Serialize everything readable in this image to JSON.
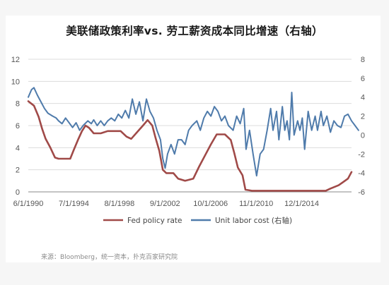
{
  "colors": {
    "fed": "#a04a48",
    "ulc": "#4f7bab",
    "grid": "#dcdcdc",
    "axis": "#888888"
  },
  "chart_data": {
    "type": "line",
    "title": "美联储政策利率vs. 劳工薪资成本同比增速（右轴）",
    "x_tick_labels": [
      "6/1/1990",
      "7/1/1994",
      "8/1/1998",
      "9/1/2002",
      "10/1/2006",
      "11/1/2010",
      "12/1/2014"
    ],
    "x_range": [
      1990.42,
      2018.0
    ],
    "y_left": {
      "ticks": [
        0,
        2,
        4,
        6,
        8,
        10,
        12
      ],
      "range": [
        0,
        12
      ]
    },
    "y_right": {
      "ticks": [
        -6,
        -4,
        -2,
        0,
        2,
        4,
        6,
        8
      ],
      "range": [
        -6,
        8
      ]
    },
    "grid": true,
    "legend_position": "bottom",
    "series": [
      {
        "name": "Fed policy rate",
        "axis": "left",
        "points": [
          [
            1990.42,
            8.2
          ],
          [
            1990.9,
            7.8
          ],
          [
            1991.3,
            6.8
          ],
          [
            1991.6,
            5.7
          ],
          [
            1991.9,
            4.8
          ],
          [
            1992.3,
            4.0
          ],
          [
            1992.7,
            3.1
          ],
          [
            1993.0,
            3.0
          ],
          [
            1993.5,
            3.0
          ],
          [
            1994.0,
            3.0
          ],
          [
            1994.3,
            3.8
          ],
          [
            1994.7,
            4.8
          ],
          [
            1995.0,
            5.5
          ],
          [
            1995.3,
            6.0
          ],
          [
            1995.6,
            5.8
          ],
          [
            1996.0,
            5.3
          ],
          [
            1996.6,
            5.3
          ],
          [
            1997.2,
            5.5
          ],
          [
            1997.8,
            5.5
          ],
          [
            1998.3,
            5.5
          ],
          [
            1998.8,
            5.0
          ],
          [
            1999.2,
            4.8
          ],
          [
            1999.7,
            5.4
          ],
          [
            2000.2,
            6.0
          ],
          [
            2000.6,
            6.5
          ],
          [
            2001.0,
            6.0
          ],
          [
            2001.3,
            4.8
          ],
          [
            2001.6,
            3.7
          ],
          [
            2001.9,
            2.0
          ],
          [
            2002.2,
            1.7
          ],
          [
            2002.8,
            1.7
          ],
          [
            2003.2,
            1.2
          ],
          [
            2003.8,
            1.0
          ],
          [
            2004.5,
            1.2
          ],
          [
            2005.0,
            2.3
          ],
          [
            2005.5,
            3.3
          ],
          [
            2006.0,
            4.3
          ],
          [
            2006.5,
            5.2
          ],
          [
            2007.2,
            5.2
          ],
          [
            2007.7,
            4.7
          ],
          [
            2008.0,
            3.5
          ],
          [
            2008.3,
            2.2
          ],
          [
            2008.7,
            1.5
          ],
          [
            2008.95,
            0.2
          ],
          [
            2009.5,
            0.1
          ],
          [
            2012.0,
            0.1
          ],
          [
            2015.8,
            0.1
          ],
          [
            2016.2,
            0.3
          ],
          [
            2016.9,
            0.6
          ],
          [
            2017.3,
            0.9
          ],
          [
            2017.7,
            1.2
          ],
          [
            2018.0,
            1.8
          ]
        ]
      },
      {
        "name": "Unit labor cost (右轴)",
        "axis": "right",
        "points": [
          [
            1990.42,
            4.0
          ],
          [
            1990.7,
            4.8
          ],
          [
            1990.9,
            5.0
          ],
          [
            1991.2,
            4.2
          ],
          [
            1991.5,
            3.5
          ],
          [
            1991.8,
            2.8
          ],
          [
            1992.1,
            2.3
          ],
          [
            1992.5,
            2.0
          ],
          [
            1992.8,
            1.8
          ],
          [
            1993.0,
            1.5
          ],
          [
            1993.3,
            1.2
          ],
          [
            1993.6,
            1.8
          ],
          [
            1993.9,
            1.3
          ],
          [
            1994.2,
            0.8
          ],
          [
            1994.5,
            1.3
          ],
          [
            1994.8,
            0.5
          ],
          [
            1995.1,
            1.0
          ],
          [
            1995.5,
            1.5
          ],
          [
            1995.8,
            1.2
          ],
          [
            1996.0,
            1.6
          ],
          [
            1996.3,
            1.0
          ],
          [
            1996.6,
            1.5
          ],
          [
            1996.9,
            1.0
          ],
          [
            1997.2,
            1.5
          ],
          [
            1997.5,
            1.8
          ],
          [
            1997.8,
            1.5
          ],
          [
            1998.1,
            2.2
          ],
          [
            1998.4,
            1.8
          ],
          [
            1998.7,
            2.6
          ],
          [
            1999.0,
            1.8
          ],
          [
            1999.3,
            3.8
          ],
          [
            1999.6,
            2.2
          ],
          [
            1999.9,
            3.5
          ],
          [
            2000.2,
            1.5
          ],
          [
            2000.5,
            3.8
          ],
          [
            2000.8,
            2.5
          ],
          [
            2001.1,
            1.8
          ],
          [
            2001.4,
            0.5
          ],
          [
            2001.7,
            -0.5
          ],
          [
            2001.9,
            -2.5
          ],
          [
            2002.1,
            -3.5
          ],
          [
            2002.3,
            -2.0
          ],
          [
            2002.6,
            -1.0
          ],
          [
            2002.9,
            -2.0
          ],
          [
            2003.2,
            -0.5
          ],
          [
            2003.5,
            -0.5
          ],
          [
            2003.8,
            -1.0
          ],
          [
            2004.1,
            0.5
          ],
          [
            2004.4,
            1.0
          ],
          [
            2004.8,
            1.5
          ],
          [
            2005.1,
            0.5
          ],
          [
            2005.4,
            1.8
          ],
          [
            2005.7,
            2.5
          ],
          [
            2006.0,
            2.0
          ],
          [
            2006.3,
            3.0
          ],
          [
            2006.6,
            2.5
          ],
          [
            2006.9,
            1.5
          ],
          [
            2007.2,
            2.0
          ],
          [
            2007.5,
            1.0
          ],
          [
            2007.9,
            0.5
          ],
          [
            2008.2,
            2.0
          ],
          [
            2008.5,
            1.2
          ],
          [
            2008.8,
            2.8
          ],
          [
            2009.0,
            -1.5
          ],
          [
            2009.3,
            0.5
          ],
          [
            2009.6,
            -2.0
          ],
          [
            2009.9,
            -4.3
          ],
          [
            2010.2,
            -2.0
          ],
          [
            2010.5,
            -1.5
          ],
          [
            2010.8,
            0.5
          ],
          [
            2011.1,
            2.8
          ],
          [
            2011.3,
            0.5
          ],
          [
            2011.6,
            2.5
          ],
          [
            2011.8,
            -0.5
          ],
          [
            2012.1,
            3.0
          ],
          [
            2012.3,
            0.5
          ],
          [
            2012.5,
            1.5
          ],
          [
            2012.7,
            -0.5
          ],
          [
            2012.9,
            4.5
          ],
          [
            2013.1,
            0.0
          ],
          [
            2013.4,
            1.5
          ],
          [
            2013.6,
            0.5
          ],
          [
            2013.8,
            1.8
          ],
          [
            2014.0,
            -1.5
          ],
          [
            2014.3,
            2.5
          ],
          [
            2014.6,
            0.5
          ],
          [
            2014.9,
            2.0
          ],
          [
            2015.1,
            0.5
          ],
          [
            2015.4,
            2.5
          ],
          [
            2015.6,
            1.0
          ],
          [
            2015.9,
            2.0
          ],
          [
            2016.2,
            0.3
          ],
          [
            2016.5,
            1.5
          ],
          [
            2016.8,
            1.0
          ],
          [
            2017.1,
            0.8
          ],
          [
            2017.4,
            2.0
          ],
          [
            2017.7,
            2.2
          ],
          [
            2018.0,
            1.5
          ],
          [
            2018.3,
            1.0
          ],
          [
            2018.6,
            0.5
          ]
        ]
      }
    ]
  },
  "source": "来源：Bloomberg，统一资本，扑克百家研究院"
}
